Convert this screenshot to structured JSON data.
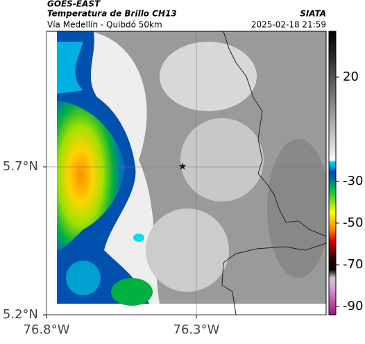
{
  "header": {
    "satellite": "GOES-EAST",
    "product": "Temperatura de Brillo CH13",
    "route": "Vía Medellín - Quibdó 50km",
    "source": "SIATA",
    "datetime": "2025-02-18 21:59"
  },
  "map": {
    "lon_lim": [
      -76.8,
      -75.867
    ],
    "lat_lim": [
      5.2,
      6.158
    ],
    "xticks": [
      {
        "value": -76.8,
        "label": "76.8°W"
      },
      {
        "value": -76.3,
        "label": "76.3°W"
      }
    ],
    "yticks": [
      {
        "value": 5.7,
        "label": "5.7°N"
      },
      {
        "value": 5.2,
        "label": "5.2°N"
      }
    ],
    "grid": true
  },
  "colorbar": {
    "lim": [
      -94,
      42
    ],
    "ticks": [
      20,
      -30,
      -50,
      -70,
      -90
    ]
  }
}
